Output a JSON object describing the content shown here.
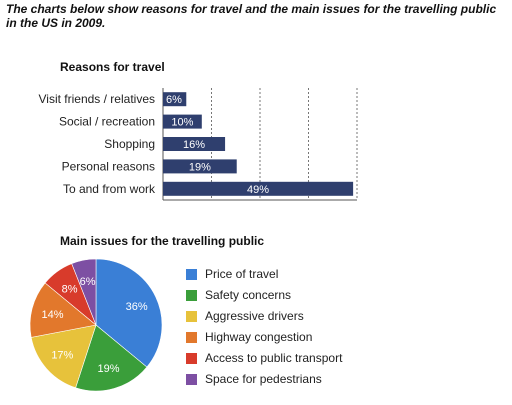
{
  "header": {
    "title": "The charts below show reasons for travel and the main issues for the travelling public in the US in 2009."
  },
  "chart_data": [
    {
      "type": "bar",
      "orientation": "horizontal",
      "title": "Reasons for travel",
      "categories": [
        "Visit friends / relatives",
        "Social / recreation",
        "Shopping",
        "Personal reasons",
        "To and from work"
      ],
      "values": [
        6,
        10,
        16,
        19,
        49
      ],
      "data_labels": [
        "6%",
        "10%",
        "16%",
        "19%",
        "49%"
      ],
      "xlim": [
        0,
        50
      ],
      "grid": true,
      "bar_color": "#2f3f6e",
      "label_color": "#ffffff"
    },
    {
      "type": "pie",
      "title": "Main issues for the travelling public",
      "legend_position": "right",
      "slices": [
        {
          "label": "Price of travel",
          "value": 36,
          "text": "36%",
          "color": "#3a7fd6"
        },
        {
          "label": "Safety concerns",
          "value": 19,
          "text": "19%",
          "color": "#3a9e3a"
        },
        {
          "label": "Aggressive drivers",
          "value": 17,
          "text": "17%",
          "color": "#e7c23b"
        },
        {
          "label": "Highway congestion",
          "value": 14,
          "text": "14%",
          "color": "#e2782c"
        },
        {
          "label": "Access to public transport",
          "value": 8,
          "text": "8%",
          "color": "#d83b2b"
        },
        {
          "label": "Space for pedestrians",
          "value": 6,
          "text": "6%",
          "color": "#7d4fa3"
        }
      ]
    }
  ]
}
